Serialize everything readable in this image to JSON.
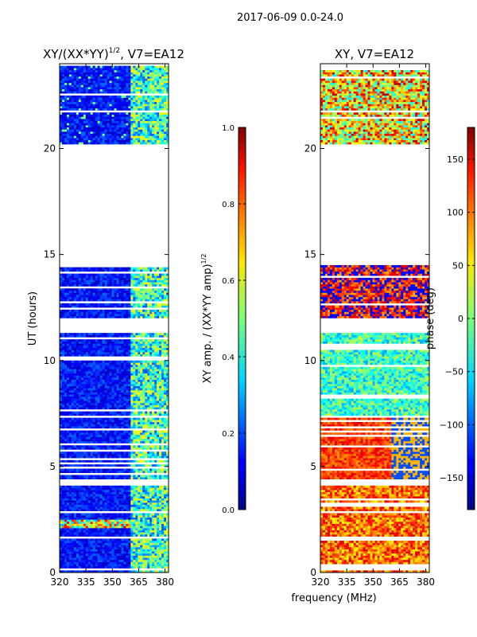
{
  "figure": {
    "suptitle": "2017-06-09 0.0-24.0",
    "shared_xlabel": "frequency (MHz)"
  },
  "chart_data": [
    {
      "type": "heatmap",
      "title_base": "XY/(XX*YY)",
      "title_exponent": "1/2",
      "title_suffix": ", V7=EA12",
      "xlabel": "",
      "ylabel": "UT (hours)",
      "xlim": [
        320,
        382
      ],
      "ylim": [
        0,
        24
      ],
      "x_ticks": [
        320,
        335,
        350,
        365,
        380
      ],
      "y_ticks": [
        0,
        5,
        10,
        15,
        20
      ],
      "coverage_hours": [
        [
          0.0,
          4.1
        ],
        [
          4.4,
          7.3
        ],
        [
          7.4,
          11.3
        ],
        [
          12.0,
          14.5
        ],
        [
          20.2,
          23.9
        ]
      ],
      "rfi_band_mhz": [
        360,
        382
      ],
      "colorbar": {
        "label_base": "XY amp. / (XX*YY amp)",
        "label_exponent": "1/2",
        "range": [
          0.0,
          1.0
        ],
        "ticks": [
          "0.0",
          "0.2",
          "0.4",
          "0.6",
          "0.8",
          "1.0"
        ]
      }
    },
    {
      "type": "heatmap",
      "title": "XY, V7=EA12",
      "xlabel": "",
      "ylabel": "",
      "xlim": [
        320,
        382
      ],
      "ylim": [
        0,
        24
      ],
      "x_ticks": [
        320,
        335,
        350,
        365,
        380
      ],
      "y_ticks": [
        0,
        5,
        10,
        15,
        20
      ],
      "coverage_hours": [
        [
          0.0,
          4.1
        ],
        [
          4.4,
          7.3
        ],
        [
          7.4,
          11.3
        ],
        [
          12.0,
          14.5
        ],
        [
          20.2,
          23.9
        ]
      ],
      "colorbar": {
        "label": "phase (deg)",
        "range": [
          -180,
          180
        ],
        "ticks": [
          "−150",
          "−100",
          "−50",
          "0",
          "50",
          "100",
          "150"
        ]
      }
    }
  ]
}
